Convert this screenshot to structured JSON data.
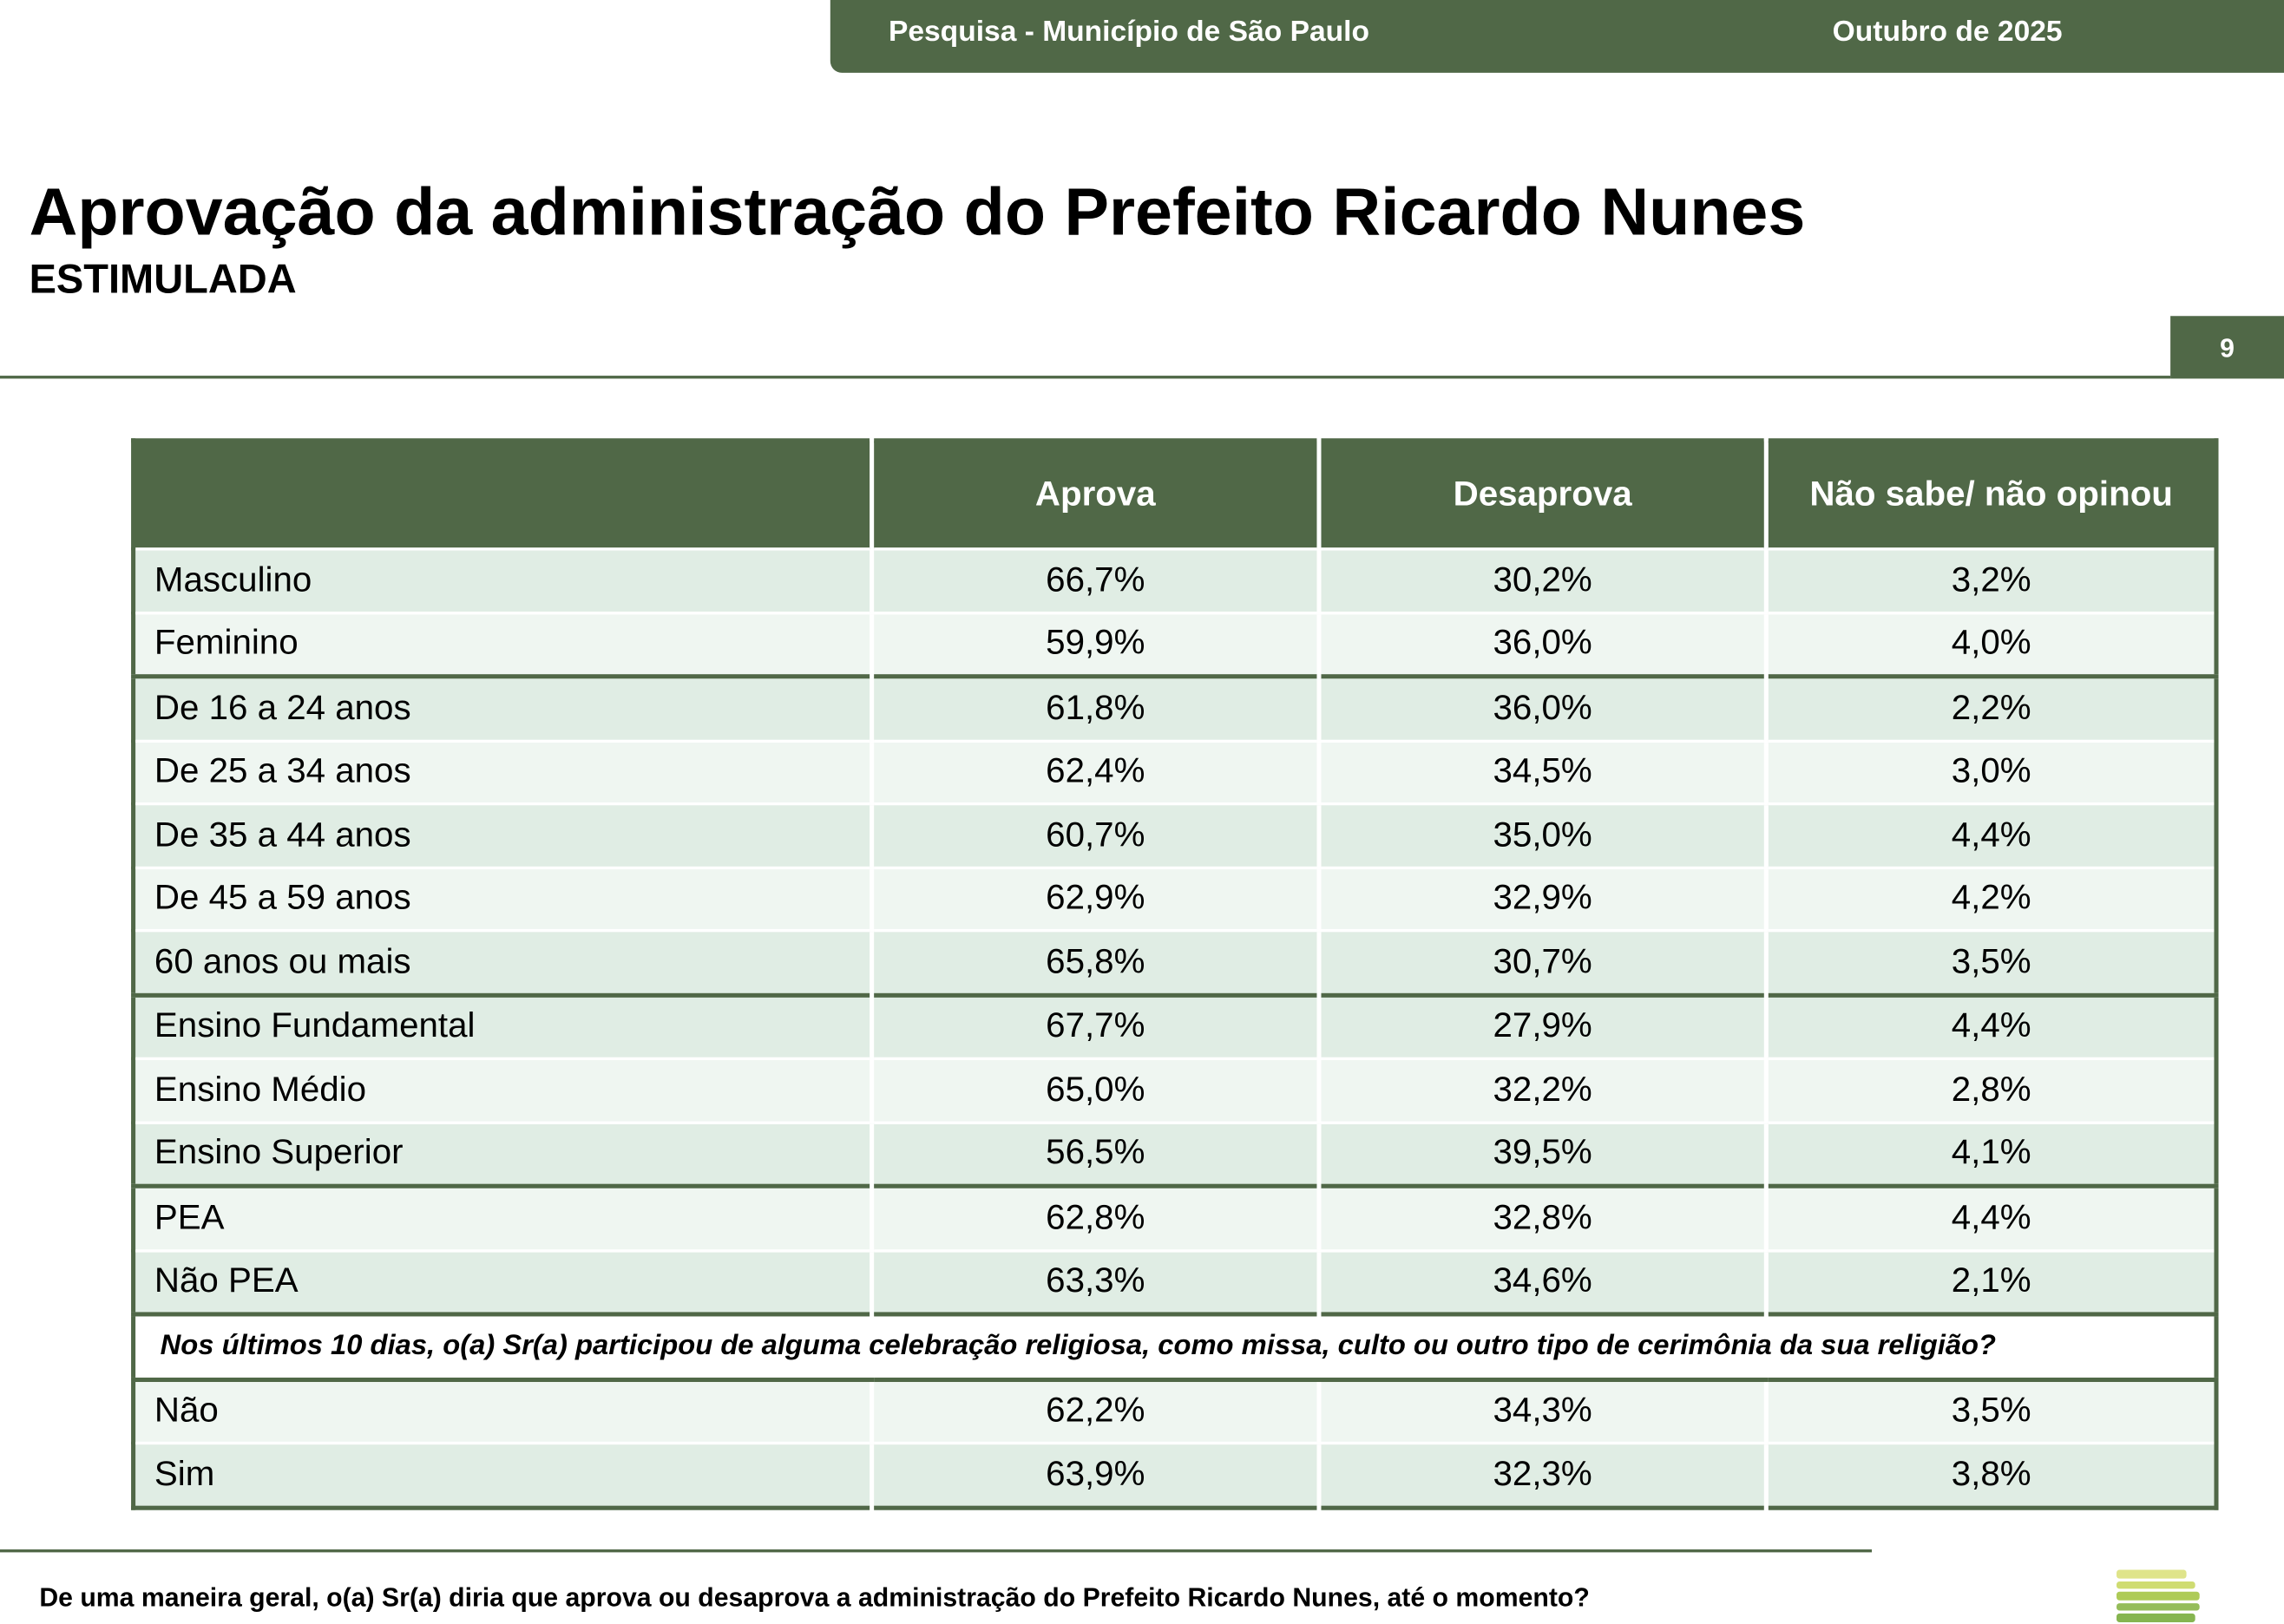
{
  "header": {
    "survey": "Pesquisa - Município de São Paulo",
    "date": "Outubro de 2025"
  },
  "title": "Aprovação da administração do Prefeito Ricardo Nunes",
  "subtitle": "ESTIMULADA",
  "page_number": "9",
  "table": {
    "columns": [
      "",
      "Aprova",
      "Desaprova",
      "Não sabe/ não opinou"
    ],
    "rows": [
      {
        "label": "Masculino",
        "values": [
          "66,7%",
          "30,2%",
          "3,2%"
        ]
      },
      {
        "label": "Feminino",
        "values": [
          "59,9%",
          "36,0%",
          "4,0%"
        ]
      },
      {
        "label": "De 16 a 24 anos",
        "values": [
          "61,8%",
          "36,0%",
          "2,2%"
        ]
      },
      {
        "label": "De 25 a 34 anos",
        "values": [
          "62,4%",
          "34,5%",
          "3,0%"
        ]
      },
      {
        "label": "De 35 a 44 anos",
        "values": [
          "60,7%",
          "35,0%",
          "4,4%"
        ]
      },
      {
        "label": "De 45 a 59 anos",
        "values": [
          "62,9%",
          "32,9%",
          "4,2%"
        ]
      },
      {
        "label": "60 anos ou mais",
        "values": [
          "65,8%",
          "30,7%",
          "3,5%"
        ]
      },
      {
        "label": "Ensino Fundamental",
        "values": [
          "67,7%",
          "27,9%",
          "4,4%"
        ]
      },
      {
        "label": "Ensino Médio",
        "values": [
          "65,0%",
          "32,2%",
          "2,8%"
        ]
      },
      {
        "label": "Ensino Superior",
        "values": [
          "56,5%",
          "39,5%",
          "4,1%"
        ]
      },
      {
        "label": "PEA",
        "values": [
          "62,8%",
          "32,8%",
          "4,4%"
        ]
      },
      {
        "label": "Não PEA",
        "values": [
          "63,3%",
          "34,6%",
          "2,1%"
        ]
      }
    ],
    "religion_question": "Nos últimos 10 dias, o(a) Sr(a) participou de alguma celebração religiosa, como missa, culto ou outro tipo de cerimônia da sua religião?",
    "religion_rows": [
      {
        "label": "Não",
        "values": [
          "62,2%",
          "34,3%",
          "3,5%"
        ]
      },
      {
        "label": "Sim",
        "values": [
          "63,9%",
          "32,3%",
          "3,8%"
        ]
      }
    ]
  },
  "footer_question": "De uma maneira geral, o(a) Sr(a) diria que aprova ou desaprova a administração do Prefeito Ricardo Nunes, até o momento?",
  "colors": {
    "brand_green": "#506847",
    "row_dark": "#e0ede4",
    "row_light": "#eff6f1"
  }
}
